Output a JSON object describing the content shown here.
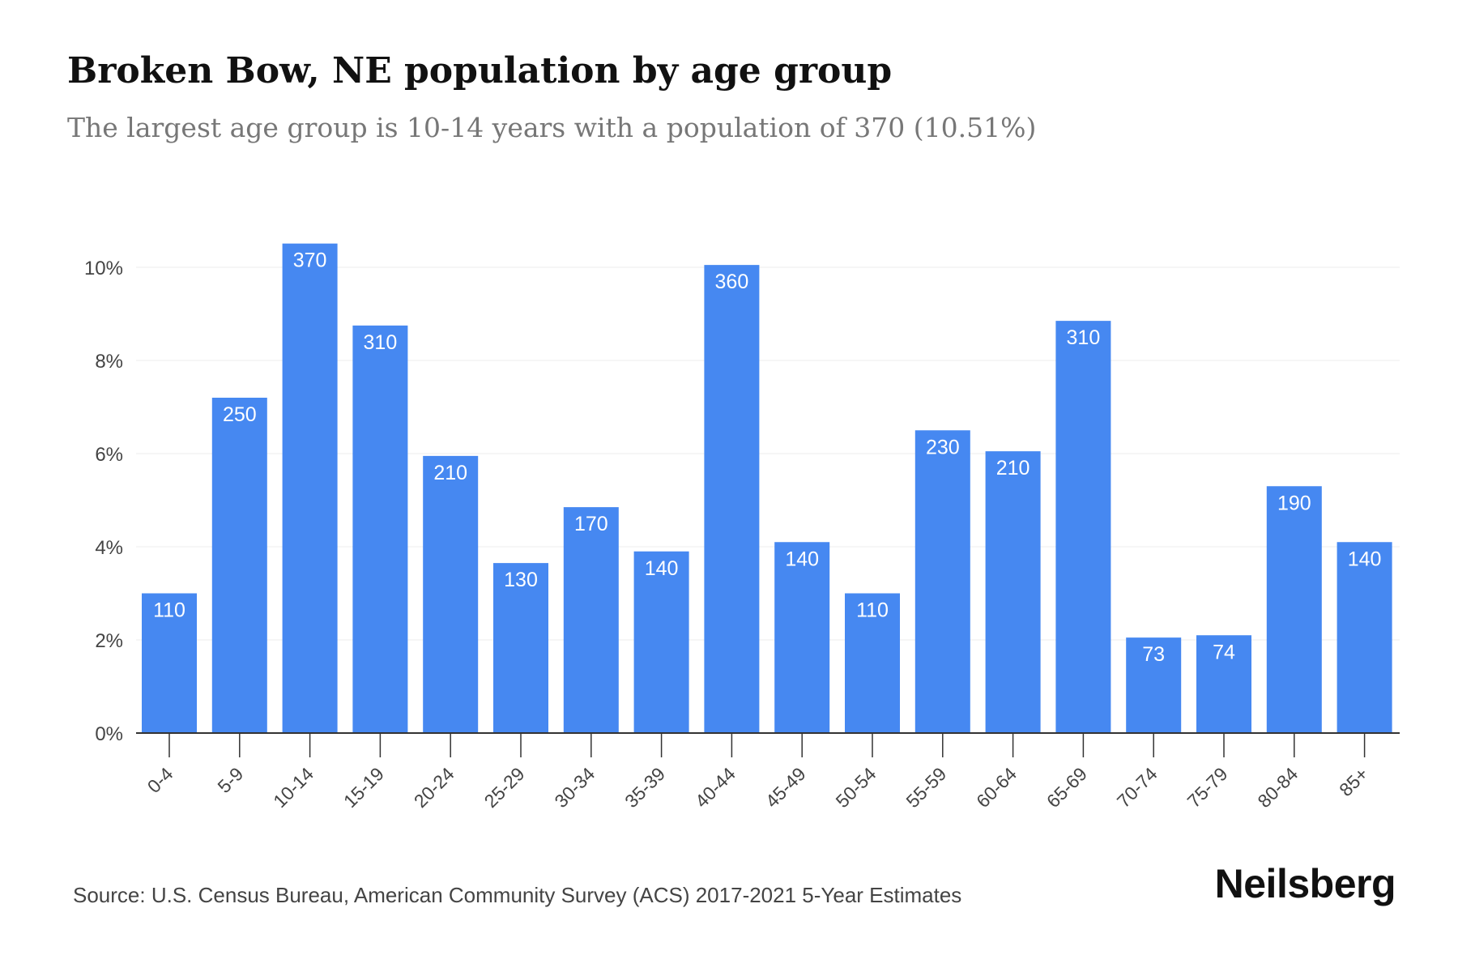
{
  "header": {
    "title": "Broken Bow, NE population by age group",
    "subtitle": "The largest age group is 10-14 years with a population of 370 (10.51%)"
  },
  "footer": {
    "source": "Source: U.S. Census Bureau, American Community Survey (ACS) 2017-2021 5-Year Estimates",
    "brand": "Neilsberg"
  },
  "colors": {
    "bar": "#4688f1",
    "bar_label": "#ffffff",
    "grid": "#ececec",
    "axis": "#333333",
    "tick_text": "#444444"
  },
  "chart_data": {
    "type": "bar",
    "title": "Broken Bow, NE population by age group",
    "subtitle": "The largest age group is 10-14 years with a population of 370 (10.51%)",
    "xlabel": "",
    "ylabel": "",
    "categories": [
      "0-4",
      "5-9",
      "10-14",
      "15-19",
      "20-24",
      "25-29",
      "30-34",
      "35-39",
      "40-44",
      "45-49",
      "50-54",
      "55-59",
      "60-64",
      "65-69",
      "70-74",
      "75-79",
      "80-84",
      "85+"
    ],
    "values": [
      3.0,
      7.2,
      10.51,
      8.75,
      5.95,
      3.65,
      4.85,
      3.9,
      10.05,
      4.1,
      3.0,
      6.5,
      6.05,
      8.85,
      2.05,
      2.1,
      5.3,
      4.1
    ],
    "value_unit": "percent of population",
    "data_labels": [
      "110",
      "250",
      "370",
      "310",
      "210",
      "130",
      "170",
      "140",
      "360",
      "140",
      "110",
      "230",
      "210",
      "310",
      "73",
      "74",
      "190",
      "140"
    ],
    "ylim": [
      0,
      10
    ],
    "yticks": [
      0,
      2,
      4,
      6,
      8,
      10
    ],
    "ytick_labels": [
      "0%",
      "2%",
      "4%",
      "6%",
      "8%",
      "10%"
    ],
    "grid": true,
    "legend": "none"
  }
}
